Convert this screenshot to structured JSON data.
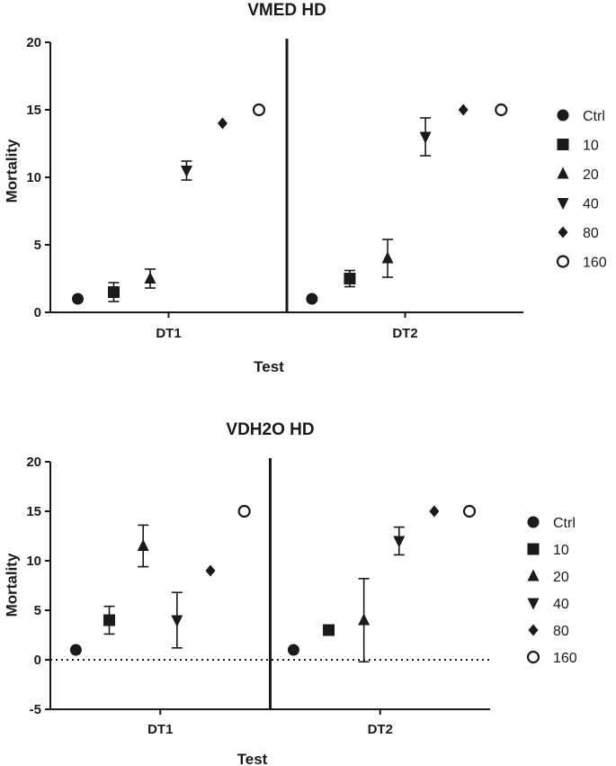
{
  "colors": {
    "ink": "#1a1a1a",
    "background": "#ffffff"
  },
  "chart_data": [
    {
      "type": "scatter",
      "title": "VMED HD",
      "xlabel": "Test",
      "ylabel": "Mortality",
      "categories": [
        "DT1",
        "DT2"
      ],
      "ylim": [
        0,
        20
      ],
      "yticks": [
        0,
        5,
        10,
        15,
        20
      ],
      "zero_reference_line": false,
      "category_separator": true,
      "legend_position": "right",
      "series": [
        {
          "name": "Ctrl",
          "marker": "circle-filled",
          "values": [
            1,
            1
          ],
          "errors": [
            0,
            0
          ]
        },
        {
          "name": "10",
          "marker": "square-filled",
          "values": [
            1.5,
            2.5
          ],
          "errors": [
            0.7,
            0.6
          ]
        },
        {
          "name": "20",
          "marker": "triangle-up-filled",
          "values": [
            2.5,
            4.0
          ],
          "errors": [
            0.7,
            1.4
          ]
        },
        {
          "name": "40",
          "marker": "triangle-down-filled",
          "values": [
            10.5,
            13.0
          ],
          "errors": [
            0.7,
            1.4
          ]
        },
        {
          "name": "80",
          "marker": "diamond-filled",
          "values": [
            14.0,
            15.0
          ],
          "errors": [
            0,
            0
          ]
        },
        {
          "name": "160",
          "marker": "circle-open",
          "values": [
            15.0,
            15.0
          ],
          "errors": [
            0,
            0
          ]
        }
      ]
    },
    {
      "type": "scatter",
      "title": "VDH2O HD",
      "xlabel": "Test",
      "ylabel": "Mortality",
      "categories": [
        "DT1",
        "DT2"
      ],
      "ylim": [
        -5,
        20
      ],
      "yticks": [
        -5,
        0,
        5,
        10,
        15,
        20
      ],
      "zero_reference_line": true,
      "category_separator": true,
      "legend_position": "right",
      "series": [
        {
          "name": "Ctrl",
          "marker": "circle-filled",
          "values": [
            1,
            1
          ],
          "errors": [
            0,
            0
          ]
        },
        {
          "name": "10",
          "marker": "square-filled",
          "values": [
            4.0,
            3.0
          ],
          "errors": [
            1.4,
            0
          ]
        },
        {
          "name": "20",
          "marker": "triangle-up-filled",
          "values": [
            11.5,
            4.0
          ],
          "errors": [
            2.1,
            4.2
          ]
        },
        {
          "name": "40",
          "marker": "triangle-down-filled",
          "values": [
            4.0,
            12.0
          ],
          "errors": [
            2.8,
            1.4
          ]
        },
        {
          "name": "80",
          "marker": "diamond-filled",
          "values": [
            9.0,
            15.0
          ],
          "errors": [
            0,
            0
          ]
        },
        {
          "name": "160",
          "marker": "circle-open",
          "values": [
            15.0,
            15.0
          ],
          "errors": [
            0,
            0
          ]
        }
      ]
    }
  ]
}
